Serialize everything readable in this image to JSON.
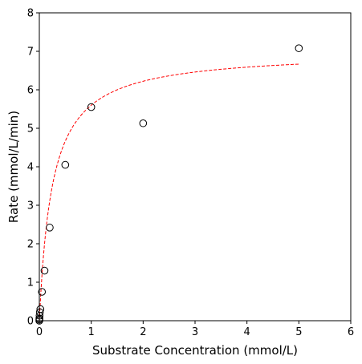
{
  "chart_data": {
    "type": "scatter",
    "title": "",
    "xlabel": "Substrate Concentration (mmol/L)",
    "ylabel": "Rate (mmol/L/min)",
    "xlim": [
      0,
      6
    ],
    "ylim": [
      0,
      8
    ],
    "xticks": [
      "0",
      "1",
      "2",
      "3",
      "4",
      "5",
      "6"
    ],
    "yticks": [
      "0",
      "1",
      "2",
      "3",
      "4",
      "5",
      "6",
      "7",
      "8"
    ],
    "grid": false,
    "legend": "none",
    "series": [
      {
        "kind": "scatter",
        "marker": "open-circle",
        "color": "#000000",
        "x": [
          0.0,
          0.001,
          0.002,
          0.005,
          0.01,
          0.02,
          0.05,
          0.1,
          0.2,
          0.5,
          1.0,
          2.0,
          5.0
        ],
        "y": [
          0.0,
          0.03,
          0.06,
          0.13,
          0.22,
          0.3,
          0.75,
          1.3,
          2.42,
          4.05,
          5.55,
          5.13,
          7.08
        ]
      },
      {
        "kind": "line",
        "style": "dashed",
        "color": "#ff0000",
        "vmax": 7.0,
        "km": 0.25,
        "x_range": [
          0,
          5
        ]
      }
    ]
  }
}
